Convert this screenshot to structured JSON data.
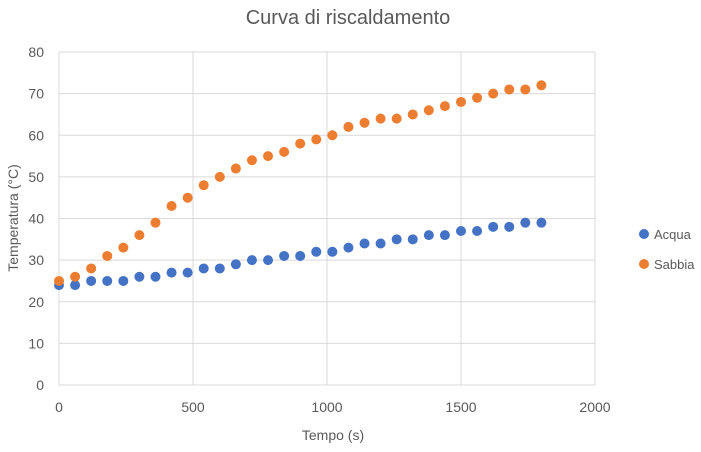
{
  "chart_data": {
    "type": "scatter",
    "title": "Curva di riscaldamento",
    "xlabel": "Tempo (s)",
    "ylabel": "Temperatura (°C)",
    "xlim": [
      0,
      2000
    ],
    "ylim": [
      0,
      80
    ],
    "x_ticks": [
      "0",
      "500",
      "1000",
      "1500",
      "2000"
    ],
    "y_ticks": [
      "0",
      "10",
      "20",
      "30",
      "40",
      "50",
      "60",
      "70",
      "80"
    ],
    "grid": true,
    "legend_position": "right",
    "x": [
      0,
      60,
      120,
      180,
      240,
      300,
      360,
      420,
      480,
      540,
      600,
      660,
      720,
      780,
      840,
      900,
      960,
      1020,
      1080,
      1140,
      1200,
      1260,
      1320,
      1380,
      1440,
      1500,
      1560,
      1620,
      1680,
      1740,
      1800
    ],
    "series": [
      {
        "name": "Acqua",
        "color": "#4472C4",
        "values": [
          24,
          24,
          25,
          25,
          25,
          26,
          26,
          27,
          27,
          28,
          28,
          29,
          30,
          30,
          31,
          31,
          32,
          32,
          33,
          34,
          34,
          35,
          35,
          36,
          36,
          37,
          37,
          38,
          38,
          39,
          39
        ]
      },
      {
        "name": "Sabbia",
        "color": "#ED7D31",
        "values": [
          25,
          26,
          28,
          31,
          33,
          36,
          39,
          43,
          45,
          48,
          50,
          52,
          54,
          55,
          56,
          58,
          59,
          60,
          62,
          63,
          64,
          64,
          65,
          66,
          67,
          68,
          69,
          70,
          71,
          71,
          72
        ]
      }
    ]
  }
}
